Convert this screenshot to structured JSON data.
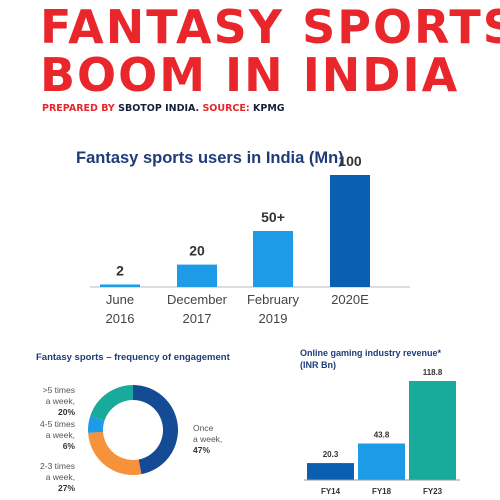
{
  "header": {
    "title_line1": "FANTASY SPORTS",
    "title_line2": "BOOM IN INDIA",
    "prepared_by_label": "PREPARED BY",
    "prepared_by_name": "SBOTOP INDIA.",
    "source_label": "SOURCE:",
    "source_name": "KPMG"
  },
  "colors": {
    "title_red": "#e8262b",
    "navy": "#1f3c7a",
    "blue_light": "#1d9be6",
    "blue_dark": "#0a5fb0",
    "teal": "#18ab9c",
    "orange": "#f5923a",
    "navy_dark": "#154a94"
  },
  "chart_data": [
    {
      "type": "bar",
      "title": "Fantasy sports users in India (Mn)",
      "categories": [
        [
          "June",
          "2016"
        ],
        [
          "December",
          "2017"
        ],
        [
          "February",
          "2019"
        ],
        [
          "2020E"
        ]
      ],
      "values": [
        2,
        20,
        50,
        100
      ],
      "data_labels": [
        "2",
        "20",
        "50+",
        "100"
      ],
      "ylim": [
        0,
        100
      ],
      "grid": false
    },
    {
      "type": "pie",
      "variant": "donut",
      "title": "Fantasy sports – frequency of engagement",
      "slices": [
        {
          "label_lines": [
            "Once",
            "a week,"
          ],
          "pct_label": "47%",
          "value": 47,
          "color": "#154a94"
        },
        {
          "label_lines": [
            "2-3 times",
            "a week,"
          ],
          "pct_label": "27%",
          "value": 27,
          "color": "#f5923a"
        },
        {
          "label_lines": [
            "4-5 times",
            "a week,"
          ],
          "pct_label": "6%",
          "value": 6,
          "color": "#1d9be6"
        },
        {
          "label_lines": [
            ">5 times",
            "a week,"
          ],
          "pct_label": "20%",
          "value": 20,
          "color": "#18ab9c"
        }
      ]
    },
    {
      "type": "bar",
      "title_lines": [
        "Online gaming industry revenue*",
        "(INR Bn)"
      ],
      "categories": [
        "FY14",
        "FY18",
        "FY23"
      ],
      "values": [
        20.3,
        43.8,
        118.8
      ],
      "data_labels": [
        "20.3",
        "43.8",
        "118.8"
      ],
      "colors": [
        "#0a5fb0",
        "#1d9be6",
        "#18ab9c"
      ],
      "ylim": [
        0,
        118.8
      ],
      "grid": false
    }
  ]
}
